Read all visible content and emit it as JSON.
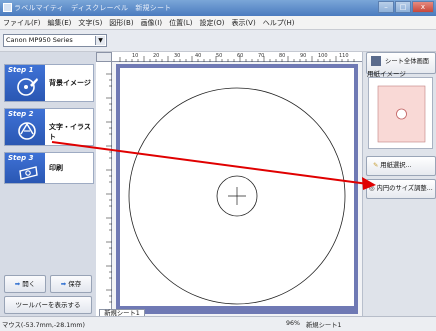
{
  "window": {
    "title": "ラベルマイティ　ディスクレーベル　新規シート",
    "controls": [
      "–",
      "□",
      "x"
    ]
  },
  "menubar": {
    "items": [
      "ファイル(F)",
      "編集(E)",
      "文字(S)",
      "図形(B)",
      "画像(I)",
      "位置(L)",
      "設定(O)",
      "表示(V)",
      "ヘルプ(H)"
    ]
  },
  "toolbar": {
    "printer": "Canon MP950 Series",
    "ruler_marks": [
      "10",
      "20",
      "30",
      "40",
      "50",
      "60",
      "70",
      "80",
      "90",
      "100",
      "110"
    ]
  },
  "sidebar": {
    "steps": [
      {
        "badge": "Step 1",
        "label": "背景イメージ",
        "icon": "disc-paint-icon"
      },
      {
        "badge": "Step 2",
        "label": "文字・イラスト",
        "icon": "text-illustration-icon"
      },
      {
        "badge": "Step 3",
        "label": "印刷",
        "icon": "printer-icon"
      }
    ],
    "open_label": "開く",
    "save_label": "保存",
    "show_toolbar_label": "ツールバーを表示する"
  },
  "right_panel": {
    "whole_view_label": "シート全体画面",
    "paper_image_label": "用紙イメージ",
    "paper_select_label": "用紙選択...",
    "circle_adjust_label": "内円のサイズ調整..."
  },
  "canvas": {
    "sheet_tab": "新規シート1",
    "arrow_color": "#e00000",
    "page_border_color": "#6f79b4"
  },
  "status": {
    "mouse": "マウス(-53.7mm,-28.1mm)",
    "zoom": "96%",
    "sheet": "新規シート1"
  }
}
